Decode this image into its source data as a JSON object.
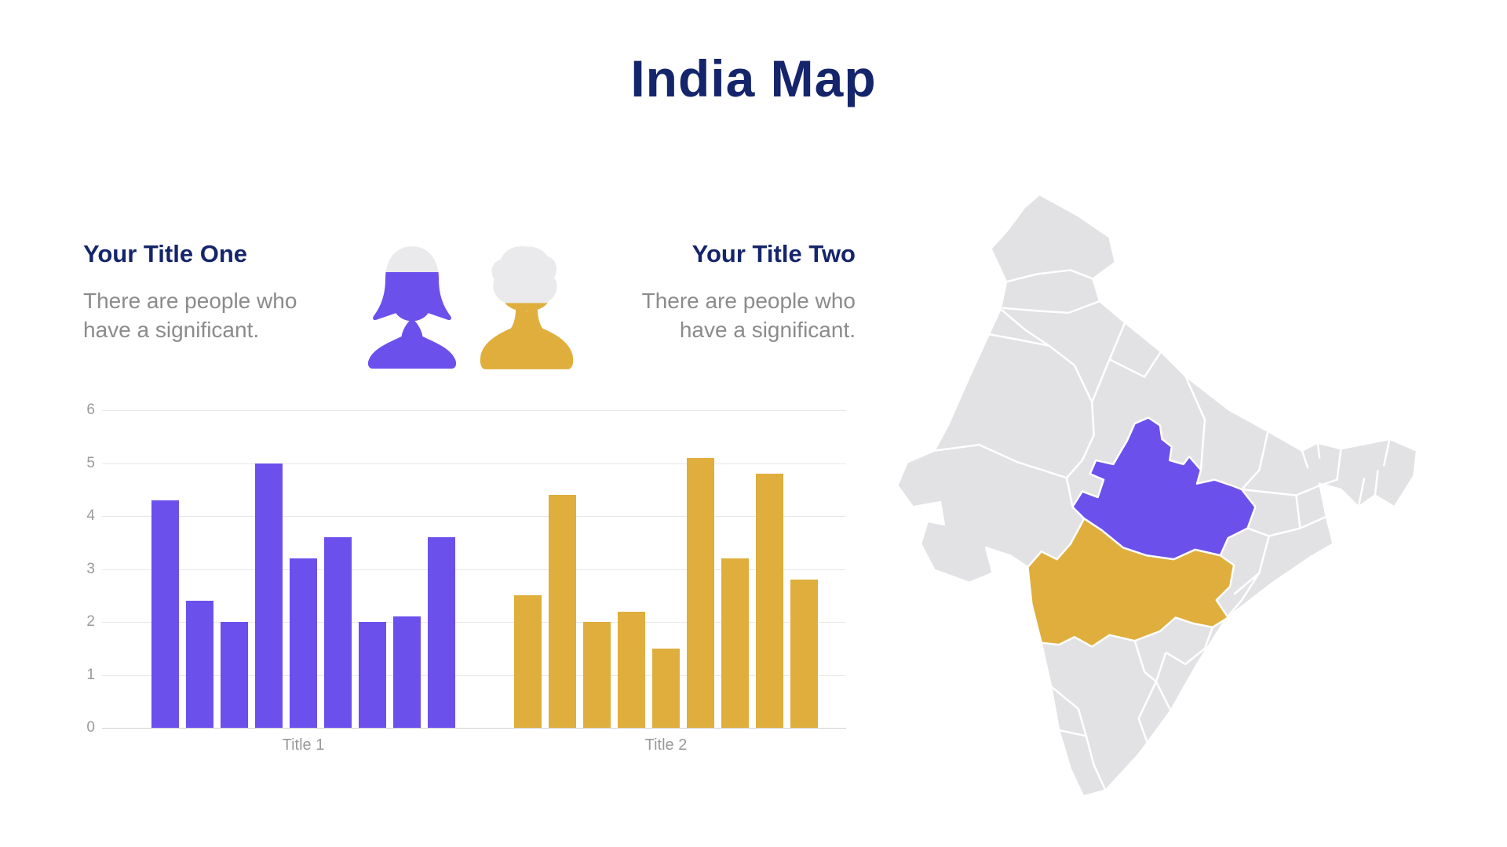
{
  "slide": {
    "title": "India Map",
    "colors": {
      "navy": "#15256B",
      "purple": "#6C50EC",
      "gold": "#DFAE3D",
      "text_gray": "#8B8B8B",
      "map_gray": "#E2E2E4",
      "head_gray": "#EAEAEC",
      "map_border": "#FFFFFF"
    }
  },
  "sections": {
    "left": {
      "title": "Your Title One",
      "description": "There are people who have a significant."
    },
    "right": {
      "title": "Your Title Two",
      "description": "There are people who have a significant."
    }
  },
  "people_icons": {
    "female": {
      "color": "#6C50EC",
      "gray_top_percent": 24
    },
    "male": {
      "color": "#DFAE3D",
      "gray_top_percent": 48
    }
  },
  "chart_data": {
    "type": "bar",
    "groups": [
      {
        "label": "Title 1",
        "color": "#6C50EC",
        "values": [
          4.3,
          2.4,
          2.0,
          5.0,
          3.2,
          3.6,
          2.0,
          2.1,
          3.6
        ]
      },
      {
        "label": "Title 2",
        "color": "#DFAE3D",
        "values": [
          2.5,
          4.4,
          2.0,
          2.2,
          1.5,
          5.1,
          3.2,
          4.8,
          2.8
        ]
      }
    ],
    "ylim": [
      0,
      6
    ],
    "yticks": [
      0,
      1,
      2,
      3,
      4,
      5,
      6
    ],
    "grid": true,
    "legend": "none"
  },
  "map": {
    "base_color": "#E2E2E4",
    "border_color": "#FFFFFF",
    "highlighted_regions": [
      {
        "name": "madhya-pradesh",
        "color": "#6C50EC"
      },
      {
        "name": "maharashtra",
        "color": "#DFAE3D"
      }
    ]
  }
}
